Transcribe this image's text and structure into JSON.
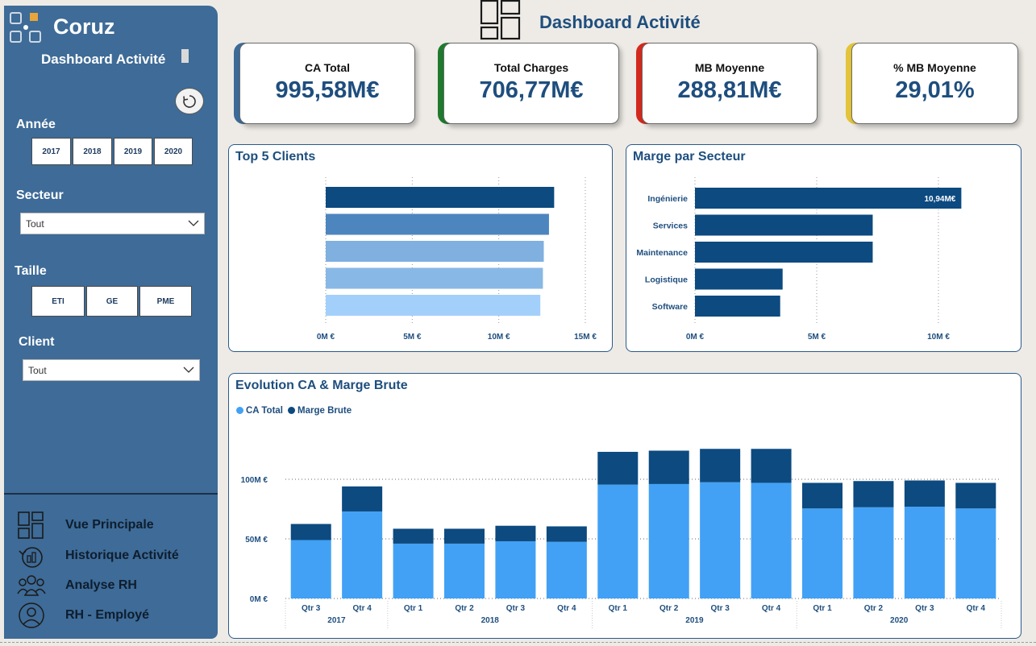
{
  "app": {
    "brand": "Coruz",
    "page_title": "Dashboard Activité",
    "sidebar_subtitle": "Dashboard Activité"
  },
  "filters": {
    "annee": {
      "label": "Année",
      "options": [
        "2017",
        "2018",
        "2019",
        "2020"
      ]
    },
    "secteur": {
      "label": "Secteur",
      "value": "Tout"
    },
    "taille": {
      "label": "Taille",
      "options": [
        "ETI",
        "GE",
        "PME"
      ]
    },
    "client": {
      "label": "Client",
      "value": "Tout"
    }
  },
  "nav": [
    {
      "label": "Vue Principale",
      "icon": "dashboard-icon"
    },
    {
      "label": "Historique Activité",
      "icon": "history-icon"
    },
    {
      "label": "Analyse RH",
      "icon": "team-icon"
    },
    {
      "label": "RH - Employé",
      "icon": "person-icon"
    }
  ],
  "kpis": [
    {
      "label": "CA Total",
      "value": "995,58M€",
      "accent": "#3d6b98"
    },
    {
      "label": "Total Charges",
      "value": "706,77M€",
      "accent": "#1f7a2e"
    },
    {
      "label": "MB Moyenne",
      "value": "288,81M€",
      "accent": "#d42a1e"
    },
    {
      "label": "% MB Moyenne",
      "value": "29,01%",
      "accent": "#e3c43a"
    }
  ],
  "colors": {
    "dark_blue": "#0c4a80",
    "light_blue": "#42a1f5",
    "title_blue": "#1e4e7e"
  },
  "chart_data": [
    {
      "type": "bar",
      "orientation": "horizontal",
      "title": "Top 5 Clients",
      "categories": [
        "",
        "",
        "",
        "",
        ""
      ],
      "values": [
        13.2,
        12.9,
        12.6,
        12.55,
        12.4
      ],
      "bar_colors": [
        "#0c4a80",
        "#4d85bf",
        "#7fb0e0",
        "#88b8e6",
        "#a3d0fb"
      ],
      "xlim": [
        0,
        15
      ],
      "xticks": [
        "0M €",
        "5M €",
        "10M €",
        "15M €"
      ]
    },
    {
      "type": "bar",
      "orientation": "horizontal",
      "title": "Marge par Secteur",
      "categories": [
        "Ingénierie",
        "Services",
        "Maintenance",
        "Logistique",
        "Software"
      ],
      "values": [
        10.94,
        7.3,
        7.3,
        3.6,
        3.5
      ],
      "data_labels": [
        "10,94M€",
        "",
        "",
        "",
        ""
      ],
      "xlim": [
        0,
        12
      ],
      "xticks": [
        "0M €",
        "5M €",
        "10M €"
      ]
    },
    {
      "type": "bar",
      "stacked": true,
      "title": "Evolution CA & Marge Brute",
      "legend": "top-left",
      "series": [
        {
          "name": "CA Total",
          "values": [
            49,
            73,
            46,
            46,
            48,
            47.5,
            95.5,
            96,
            97.5,
            97,
            75.5,
            76.5,
            77,
            75.5
          ]
        },
        {
          "name": "Marge Brute",
          "values": [
            13.5,
            21,
            12.5,
            12.5,
            13,
            13,
            27.5,
            28,
            28,
            28.5,
            21.5,
            22,
            22,
            21.5
          ]
        }
      ],
      "categories": [
        "Qtr 3",
        "Qtr 4",
        "Qtr 1",
        "Qtr 2",
        "Qtr 3",
        "Qtr 4",
        "Qtr 1",
        "Qtr 2",
        "Qtr 3",
        "Qtr 4",
        "Qtr 1",
        "Qtr 2",
        "Qtr 3",
        "Qtr 4"
      ],
      "groups": [
        {
          "label": "2017",
          "count": 2
        },
        {
          "label": "2018",
          "count": 4
        },
        {
          "label": "2019",
          "count": 4
        },
        {
          "label": "2020",
          "count": 4
        }
      ],
      "ylim": [
        0,
        130
      ],
      "yticks": [
        "0M €",
        "50M €",
        "100M €"
      ]
    }
  ]
}
